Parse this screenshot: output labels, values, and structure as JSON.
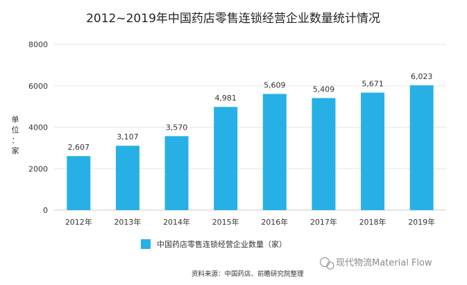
{
  "chart_data": {
    "type": "bar",
    "title": "2012~2019年中国药店零售连锁经营企业数量统计情况",
    "ylabel_chars": [
      "单",
      "位",
      "：",
      "家"
    ],
    "categories": [
      "2012年",
      "2013年",
      "2014年",
      "2015年",
      "2016年",
      "2017年",
      "2018年",
      "2019年"
    ],
    "series": [
      {
        "name": "中国药店零售连锁经营企业数量（家）",
        "values": [
          2607,
          3107,
          3570,
          4981,
          5609,
          5409,
          5671,
          6023
        ],
        "data_labels": [
          "2,607",
          "3,107",
          "3,570",
          "4,981",
          "5,609",
          "5,409",
          "5,671",
          "6,023"
        ]
      }
    ],
    "yticks": [
      "0",
      "2000",
      "4000",
      "6000",
      "8000"
    ],
    "ylim": [
      0,
      8000
    ],
    "grid": true,
    "legend_position": "bottom",
    "bar_color": "#27b0e6",
    "source": "资料来源：中国药店、前瞻研究院整理",
    "watermark": "现代物流Material Flow"
  }
}
